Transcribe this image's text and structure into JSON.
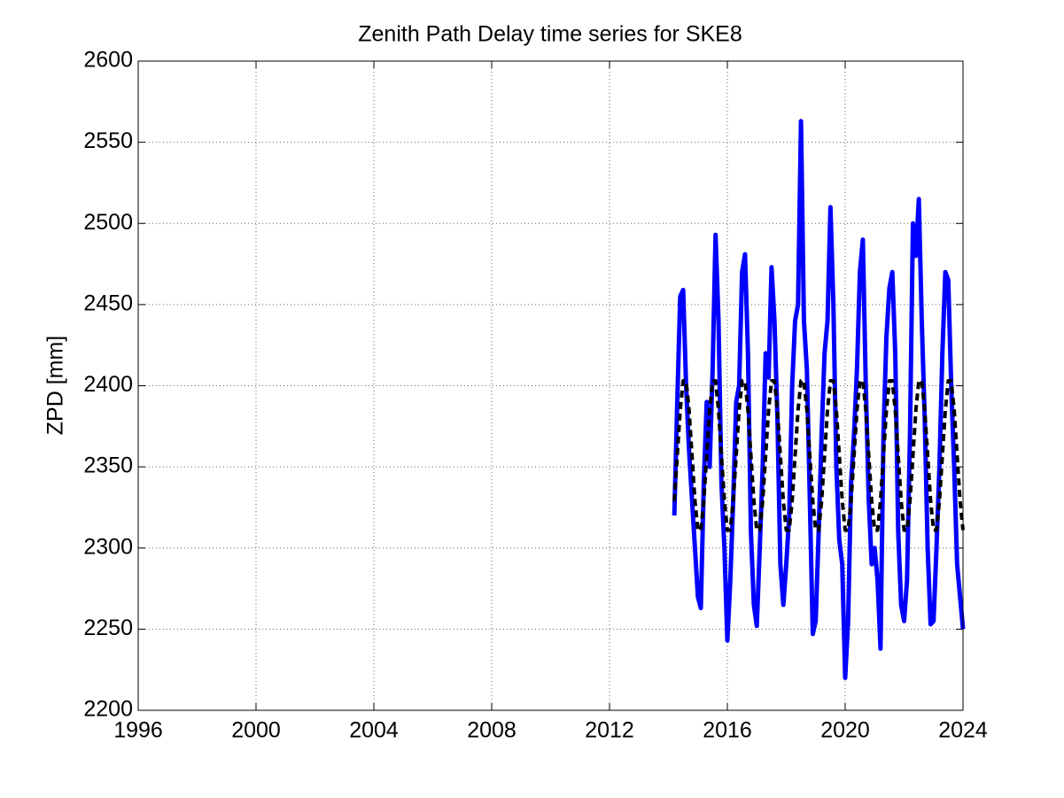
{
  "chart_data": {
    "type": "line",
    "title": "Zenith Path Delay time series for SKE8",
    "ylabel": "ZPD [mm]",
    "x": [
      2014.2,
      2014.3,
      2014.4,
      2014.5,
      2014.6,
      2014.7,
      2014.8,
      2014.9,
      2015.0,
      2015.1,
      2015.2,
      2015.3,
      2015.4,
      2015.5,
      2015.6,
      2015.7,
      2015.8,
      2015.9,
      2016.0,
      2016.1,
      2016.2,
      2016.3,
      2016.4,
      2016.5,
      2016.6,
      2016.7,
      2016.8,
      2016.9,
      2017.0,
      2017.1,
      2017.2,
      2017.3,
      2017.4,
      2017.5,
      2017.6,
      2017.7,
      2017.8,
      2017.9,
      2018.0,
      2018.1,
      2018.2,
      2018.3,
      2018.4,
      2018.5,
      2018.6,
      2018.7,
      2018.8,
      2018.9,
      2019.0,
      2019.1,
      2019.2,
      2019.3,
      2019.4,
      2019.5,
      2019.6,
      2019.7,
      2019.8,
      2019.9,
      2020.0,
      2020.1,
      2020.2,
      2020.3,
      2020.4,
      2020.5,
      2020.6,
      2020.7,
      2020.8,
      2020.9,
      2021.0,
      2021.1,
      2021.2,
      2021.3,
      2021.4,
      2021.5,
      2021.6,
      2021.7,
      2021.8,
      2021.9,
      2022.0,
      2022.1,
      2022.2,
      2022.3,
      2022.4,
      2022.5,
      2022.6,
      2022.7,
      2022.8,
      2022.9,
      2023.0,
      2023.1,
      2023.2,
      2023.3,
      2023.4,
      2023.5,
      2023.6,
      2023.7,
      2023.8,
      2023.9,
      2024.0
    ],
    "series": [
      {
        "color": "#0000ff",
        "line": "solid",
        "values": [
          2320,
          2390,
          2455,
          2459,
          2400,
          2360,
          2330,
          2300,
          2270,
          2263,
          2340,
          2390,
          2350,
          2410,
          2493,
          2440,
          2340,
          2300,
          2243,
          2280,
          2330,
          2390,
          2400,
          2470,
          2481,
          2420,
          2310,
          2265,
          2252,
          2300,
          2350,
          2420,
          2405,
          2473,
          2440,
          2380,
          2290,
          2265,
          2290,
          2320,
          2400,
          2440,
          2450,
          2563,
          2440,
          2410,
          2330,
          2247,
          2255,
          2310,
          2370,
          2420,
          2440,
          2510,
          2450,
          2350,
          2305,
          2290,
          2220,
          2255,
          2340,
          2370,
          2410,
          2470,
          2490,
          2400,
          2330,
          2290,
          2300,
          2280,
          2238,
          2370,
          2430,
          2460,
          2470,
          2420,
          2310,
          2265,
          2255,
          2280,
          2370,
          2500,
          2480,
          2515,
          2440,
          2380,
          2300,
          2253,
          2255,
          2300,
          2350,
          2420,
          2470,
          2465,
          2400,
          2350,
          2290,
          2270,
          2250
        ]
      },
      {
        "color": "#000000",
        "line": "dashed",
        "values": [
          2329,
          2357,
          2385,
          2403,
          2403,
          2385,
          2357,
          2329,
          2311,
          2311,
          2329,
          2357,
          2385,
          2403,
          2403,
          2385,
          2357,
          2329,
          2311,
          2311,
          2329,
          2357,
          2385,
          2403,
          2403,
          2385,
          2357,
          2329,
          2311,
          2311,
          2329,
          2357,
          2385,
          2403,
          2403,
          2385,
          2357,
          2329,
          2311,
          2311,
          2329,
          2357,
          2385,
          2403,
          2403,
          2385,
          2357,
          2329,
          2311,
          2311,
          2329,
          2357,
          2385,
          2403,
          2403,
          2385,
          2357,
          2329,
          2311,
          2311,
          2329,
          2357,
          2385,
          2403,
          2403,
          2385,
          2357,
          2329,
          2311,
          2311,
          2329,
          2357,
          2385,
          2403,
          2403,
          2385,
          2357,
          2329,
          2311,
          2311,
          2329,
          2357,
          2385,
          2403,
          2403,
          2385,
          2357,
          2329,
          2311,
          2311,
          2329,
          2357,
          2385,
          2403,
          2403,
          2385,
          2357,
          2329,
          2311
        ]
      }
    ],
    "xlim": [
      1996,
      2024
    ],
    "xticks": [
      1996,
      2000,
      2004,
      2008,
      2012,
      2016,
      2020,
      2024
    ],
    "ylim": [
      2200,
      2600
    ],
    "yticks": [
      2200,
      2250,
      2300,
      2350,
      2400,
      2450,
      2500,
      2550,
      2600
    ],
    "grid": true
  }
}
